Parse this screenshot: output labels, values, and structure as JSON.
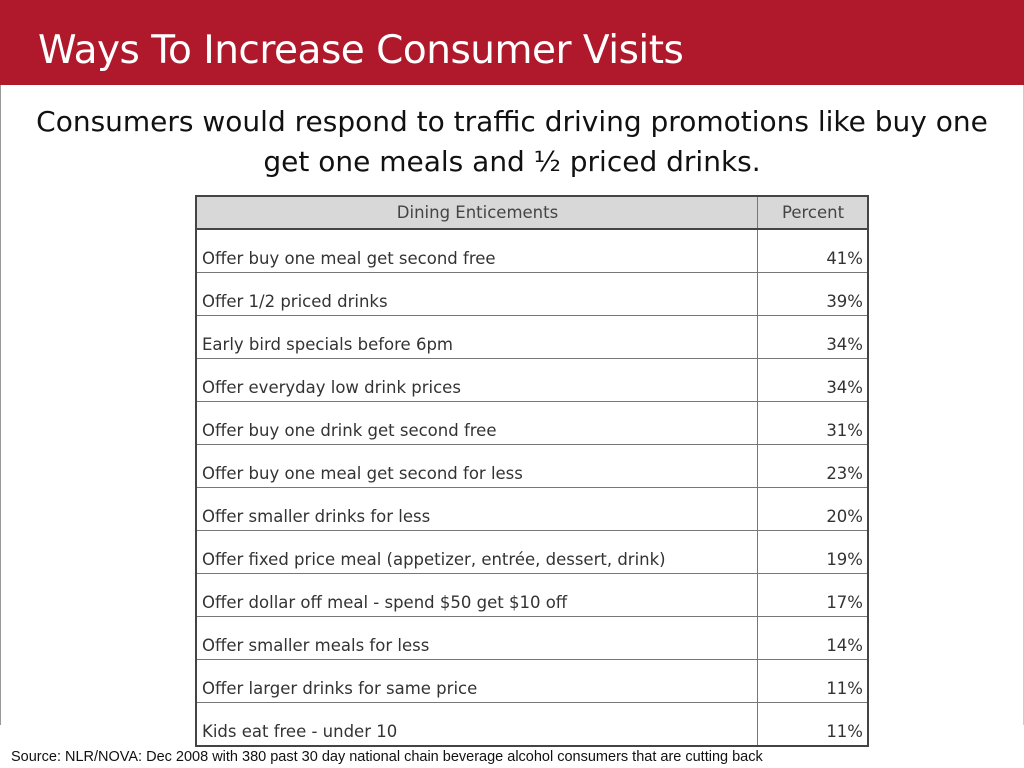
{
  "header": {
    "title": "Ways To Increase Consumer Visits"
  },
  "subtitle": "Consumers would respond to traffic driving promotions like buy one get one meals and ½ priced drinks.",
  "table": {
    "headers": [
      "Dining Enticements",
      "Percent"
    ],
    "rows": [
      [
        "Offer buy one meal get second free",
        "41%"
      ],
      [
        "Offer 1/2 priced drinks",
        "39%"
      ],
      [
        "Early bird specials before 6pm",
        "34%"
      ],
      [
        "Offer everyday low drink prices",
        "34%"
      ],
      [
        "Offer buy one drink get second free",
        "31%"
      ],
      [
        "Offer buy one meal get second for less",
        "23%"
      ],
      [
        "Offer smaller drinks for less",
        "20%"
      ],
      [
        "Offer fixed price meal (appetizer, entrée, dessert, drink)",
        "19%"
      ],
      [
        "Offer dollar off meal - spend $50 get $10 off",
        "17%"
      ],
      [
        "Offer smaller meals for less",
        "14%"
      ],
      [
        "Offer larger drinks for same price",
        "11%"
      ],
      [
        "Kids eat free - under 10",
        "11%"
      ]
    ]
  },
  "source": "Source: NLR/NOVA:  Dec 2008 with 380 past 30 day national chain beverage alcohol consumers that are cutting back"
}
